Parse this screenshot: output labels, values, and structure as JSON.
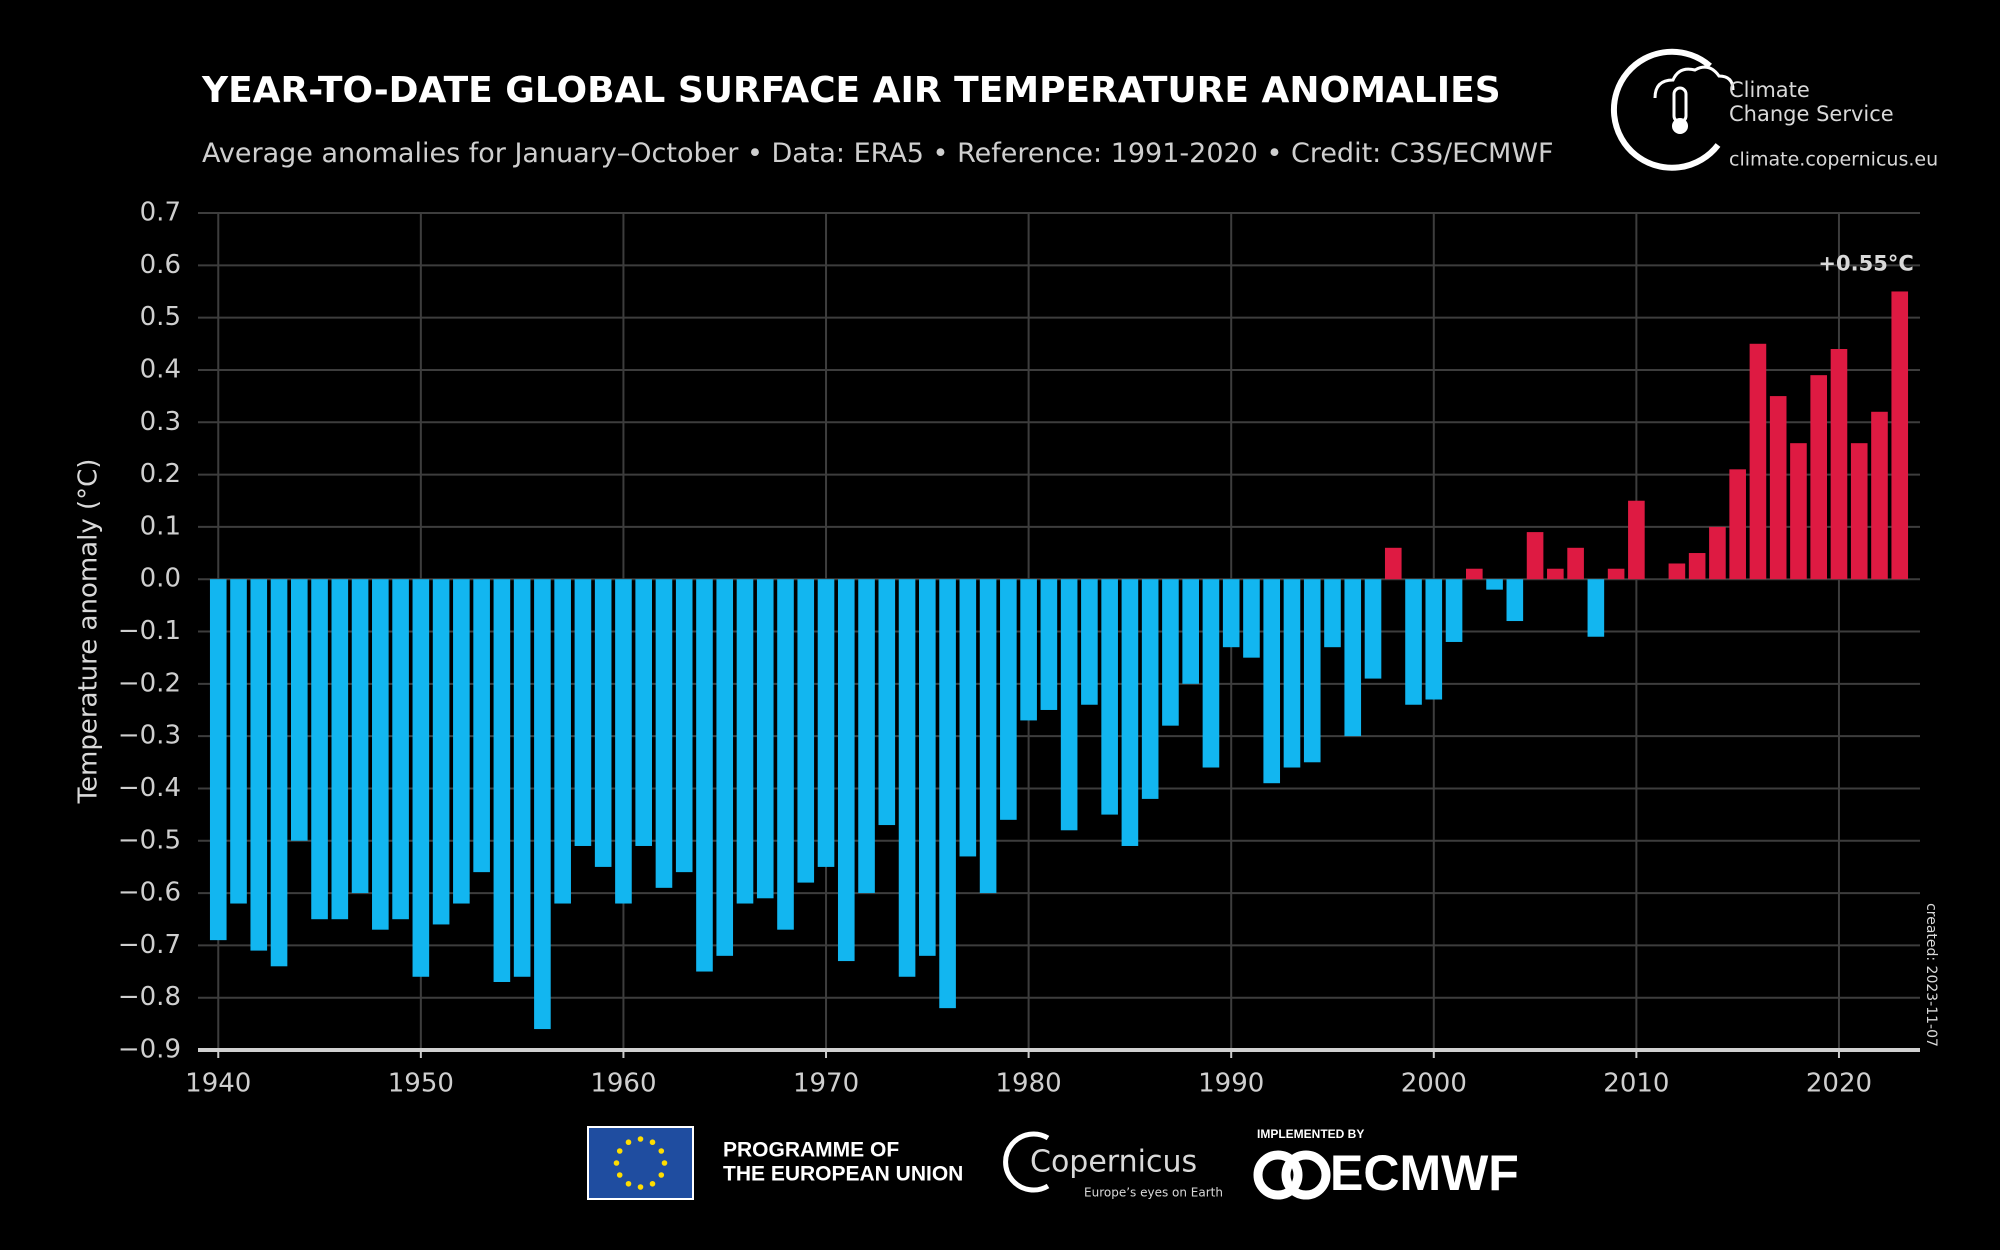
{
  "chart_data": {
    "type": "bar",
    "title": "YEAR-TO-DATE GLOBAL SURFACE AIR TEMPERATURE ANOMALIES",
    "subtitle": "Average anomalies for January–October • Data: ERA5 • Reference: 1991-2020 • Credit: C3S/ECMWF",
    "y_label": "Temperature anomaly (°C)",
    "annotation": "+0.55°C",
    "x": [
      1940,
      1941,
      1942,
      1943,
      1944,
      1945,
      1946,
      1947,
      1948,
      1949,
      1950,
      1951,
      1952,
      1953,
      1954,
      1955,
      1956,
      1957,
      1958,
      1959,
      1960,
      1961,
      1962,
      1963,
      1964,
      1965,
      1966,
      1967,
      1968,
      1969,
      1970,
      1971,
      1972,
      1973,
      1974,
      1975,
      1976,
      1977,
      1978,
      1979,
      1980,
      1981,
      1982,
      1983,
      1984,
      1985,
      1986,
      1987,
      1988,
      1989,
      1990,
      1991,
      1992,
      1993,
      1994,
      1995,
      1996,
      1997,
      1998,
      1999,
      2000,
      2001,
      2002,
      2003,
      2004,
      2005,
      2006,
      2007,
      2008,
      2009,
      2010,
      2011,
      2012,
      2013,
      2014,
      2015,
      2016,
      2017,
      2018,
      2019,
      2020,
      2021,
      2022,
      2023
    ],
    "values": [
      -0.69,
      -0.62,
      -0.71,
      -0.74,
      -0.5,
      -0.65,
      -0.65,
      -0.6,
      -0.67,
      -0.65,
      -0.76,
      -0.66,
      -0.62,
      -0.56,
      -0.77,
      -0.76,
      -0.86,
      -0.62,
      -0.51,
      -0.55,
      -0.62,
      -0.51,
      -0.59,
      -0.56,
      -0.75,
      -0.72,
      -0.62,
      -0.61,
      -0.67,
      -0.58,
      -0.55,
      -0.73,
      -0.6,
      -0.47,
      -0.76,
      -0.72,
      -0.82,
      -0.53,
      -0.6,
      -0.46,
      -0.27,
      -0.25,
      -0.48,
      -0.24,
      -0.45,
      -0.51,
      -0.42,
      -0.28,
      -0.2,
      -0.36,
      -0.13,
      -0.15,
      -0.39,
      -0.36,
      -0.35,
      -0.13,
      -0.3,
      -0.19,
      0.06,
      -0.24,
      -0.23,
      -0.12,
      0.02,
      -0.02,
      -0.08,
      0.09,
      0.02,
      0.06,
      -0.11,
      0.02,
      0.15,
      0.0,
      0.03,
      0.05,
      0.1,
      0.21,
      0.45,
      0.35,
      0.26,
      0.39,
      0.44,
      0.26,
      0.32,
      0.55
    ],
    "colors": {
      "positive": "#de1a42",
      "negative": "#12b6f0"
    },
    "annotation_color": "#e8233f",
    "xlim": [
      1939,
      2024
    ],
    "ylim": [
      -0.9,
      0.7
    ],
    "xticks": [
      1940,
      1950,
      1960,
      1970,
      1980,
      1990,
      2000,
      2010,
      2020
    ],
    "yticks": [
      {
        "value": -0.9,
        "label": "−0.9"
      },
      {
        "value": -0.8,
        "label": "−0.8"
      },
      {
        "value": -0.7,
        "label": "−0.7"
      },
      {
        "value": -0.6,
        "label": "−0.6"
      },
      {
        "value": -0.5,
        "label": "−0.5"
      },
      {
        "value": -0.4,
        "label": "−0.4"
      },
      {
        "value": -0.3,
        "label": "−0.3"
      },
      {
        "value": -0.2,
        "label": "−0.2"
      },
      {
        "value": -0.1,
        "label": "−0.1"
      },
      {
        "value": 0,
        "label": "0.0"
      },
      0.1,
      0.2,
      0.3,
      0.4,
      0.5,
      0.6,
      0.7
    ],
    "grid": true
  },
  "branding": {
    "service_line1": "Climate",
    "service_line2": "Change Service",
    "url": "climate.copernicus.eu",
    "created": "created: 2023-11-07",
    "eu_line1": "PROGRAMME OF",
    "eu_line2": "THE EUROPEAN UNION",
    "copernicus": "Copernicus",
    "copernicus_tagline": "Europe’s eyes on Earth",
    "implemented_by": "IMPLEMENTED BY",
    "ecmwf": "ECMWF"
  }
}
